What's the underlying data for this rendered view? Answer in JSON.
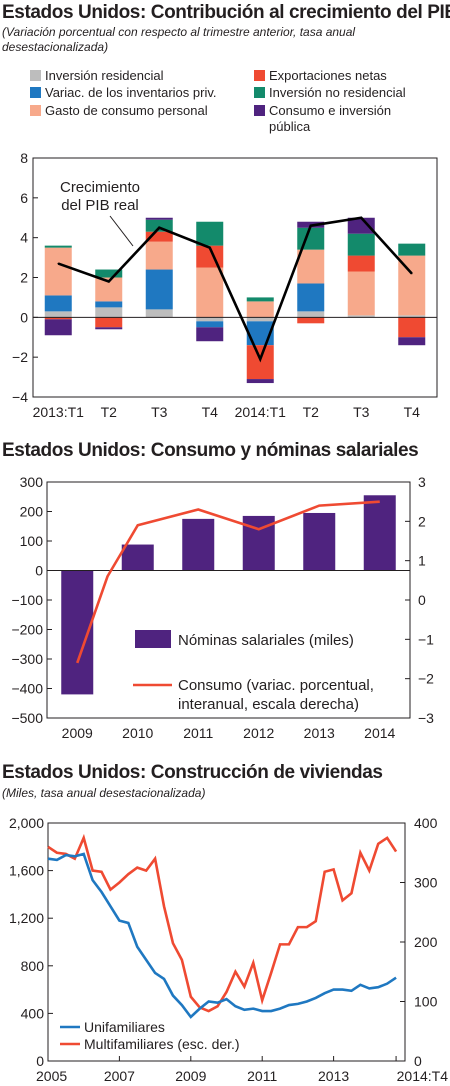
{
  "chart_data": [
    {
      "type": "bar",
      "title": "Estados Unidos: Contribución al crecimiento del PIB",
      "subtitle": "(Variación porcentual con respecto al trimestre anterior, tasa anual desestacionalizada)",
      "categories": [
        "2013:T1",
        "T2",
        "T3",
        "T4",
        "2014:T1",
        "T2",
        "T3",
        "T4"
      ],
      "ylim": [
        -4,
        8
      ],
      "yticks": [
        "−4",
        "−2",
        "0",
        "2",
        "4",
        "6",
        "8"
      ],
      "legend": [
        "Inversión residencial",
        "Exportaciones netas",
        "Variac. de los inventarios priv.",
        "Inversión no residencial",
        "Gasto de consumo personal",
        "Consumo e inversión",
        "pública"
      ],
      "annotation": [
        "Crecimiento",
        "del PIB real"
      ],
      "colors": {
        "Inversión residencial": "#bdbdbd",
        "Variac. de los inventarios priv.": "#1f78c1",
        "Gasto de consumo personal": "#f7a98b",
        "Exportaciones netas": "#ef4a32",
        "Inversión no residencial": "#138a6b",
        "Consumo e inversión pública": "#4f237f",
        "Crecimiento del PIB real": "#000000"
      },
      "series": [
        {
          "name": "Inversión residencial",
          "values": [
            0.3,
            0.5,
            0.4,
            -0.2,
            -0.2,
            0.3,
            0.1,
            0.1
          ]
        },
        {
          "name": "Variac. de los inventarios priv.",
          "values": [
            0.8,
            0.3,
            2.0,
            -0.3,
            -1.2,
            1.4,
            0.0,
            0.0
          ]
        },
        {
          "name": "Gasto de consumo personal",
          "values": [
            2.4,
            1.2,
            1.4,
            2.5,
            0.8,
            1.7,
            2.2,
            3.0
          ]
        },
        {
          "name": "Exportaciones netas",
          "values": [
            -0.1,
            -0.5,
            0.5,
            1.1,
            -1.7,
            -0.3,
            0.8,
            -1.0
          ]
        },
        {
          "name": "Inversión no residencial",
          "values": [
            0.1,
            0.4,
            0.6,
            1.2,
            0.2,
            1.1,
            1.1,
            0.6
          ]
        },
        {
          "name": "Consumo e inversión pública",
          "values": [
            -0.8,
            -0.1,
            0.1,
            -0.7,
            -0.2,
            0.3,
            0.8,
            -0.4
          ]
        },
        {
          "name": "Crecimiento del PIB real",
          "values": [
            2.7,
            1.8,
            4.5,
            3.5,
            -2.1,
            4.6,
            5.0,
            2.2
          ]
        }
      ]
    },
    {
      "type": "bar",
      "title": "Estados Unidos: Consumo y nóminas salariales",
      "categories": [
        "2009",
        "2010",
        "2011",
        "2012",
        "2013",
        "2014"
      ],
      "ylim": [
        -500,
        300
      ],
      "y2lim": [
        -3,
        3
      ],
      "yticks": [
        "−500",
        "−400",
        "−300",
        "−200",
        "−100",
        "0",
        "100",
        "200",
        "300"
      ],
      "y2ticks": [
        "−3",
        "−2",
        "−1",
        "0",
        "1",
        "2",
        "3"
      ],
      "colors": {
        "Nóminas salariales (miles)": "#4f237f",
        "Consumo": "#ef4a32"
      },
      "legend": [
        "Nóminas salariales (miles)",
        "Consumo (variac. porcentual,",
        "interanual, escala derecha)"
      ],
      "series": [
        {
          "name": "Nóminas salariales (miles)",
          "values": [
            -420,
            88,
            175,
            185,
            195,
            255
          ]
        },
        {
          "name": "Consumo",
          "axis": "right",
          "x": [
            2009,
            2009.5,
            2010,
            2011,
            2012,
            2013,
            2014
          ],
          "values": [
            -1.6,
            0.6,
            1.9,
            2.3,
            1.8,
            2.4,
            2.5
          ]
        }
      ]
    },
    {
      "type": "line",
      "title": "Estados Unidos: Construcción de viviendas",
      "subtitle": "(Miles, tasa anual desestacionalizada)",
      "xlim": [
        2005,
        2015
      ],
      "xticks": [
        "2005",
        "2007",
        "2009",
        "2011",
        "2013",
        "2014:T4"
      ],
      "ylim": [
        0,
        2000
      ],
      "y2lim": [
        0,
        400
      ],
      "yticks": [
        "0",
        "400",
        "800",
        "1,200",
        "1,600",
        "2,000"
      ],
      "y2ticks": [
        "0",
        "100",
        "200",
        "300",
        "400"
      ],
      "colors": {
        "Unifamiliares": "#1f78c1",
        "Multifamiliares": "#ef4a32"
      },
      "legend": [
        "Unifamiliares",
        "Multifamiliares (esc. der.)"
      ],
      "series": [
        {
          "name": "Unifamiliares",
          "axis": "left",
          "x": [
            2005,
            2005.25,
            2005.5,
            2005.75,
            2006,
            2006.25,
            2006.5,
            2006.75,
            2007,
            2007.25,
            2007.5,
            2007.75,
            2008,
            2008.25,
            2008.5,
            2008.75,
            2009,
            2009.25,
            2009.5,
            2009.75,
            2010,
            2010.25,
            2010.5,
            2010.75,
            2011,
            2011.25,
            2011.5,
            2011.75,
            2012,
            2012.25,
            2012.5,
            2012.75,
            2013,
            2013.25,
            2013.5,
            2013.75,
            2014,
            2014.25,
            2014.5,
            2014.75
          ],
          "values": [
            1700,
            1690,
            1730,
            1720,
            1740,
            1520,
            1420,
            1300,
            1180,
            1160,
            960,
            850,
            740,
            690,
            550,
            470,
            370,
            440,
            500,
            490,
            520,
            460,
            430,
            440,
            420,
            420,
            440,
            470,
            480,
            500,
            530,
            570,
            600,
            600,
            590,
            640,
            610,
            620,
            650,
            700
          ]
        },
        {
          "name": "Multifamiliares (esc. der.)",
          "axis": "right",
          "x": [
            2005,
            2005.25,
            2005.5,
            2005.75,
            2006,
            2006.25,
            2006.5,
            2006.75,
            2007,
            2007.25,
            2007.5,
            2007.75,
            2008,
            2008.25,
            2008.5,
            2008.75,
            2009,
            2009.25,
            2009.5,
            2009.75,
            2010,
            2010.25,
            2010.5,
            2010.75,
            2011,
            2011.25,
            2011.5,
            2011.75,
            2012,
            2012.25,
            2012.5,
            2012.75,
            2013,
            2013.25,
            2013.5,
            2013.75,
            2014,
            2014.25,
            2014.5,
            2014.75
          ],
          "values": [
            360,
            350,
            348,
            340,
            375,
            320,
            318,
            288,
            300,
            314,
            325,
            320,
            340,
            260,
            198,
            170,
            108,
            90,
            84,
            92,
            116,
            150,
            125,
            165,
            102,
            148,
            196,
            196,
            225,
            225,
            235,
            318,
            322,
            270,
            282,
            350,
            320,
            365,
            375,
            352
          ]
        }
      ]
    }
  ]
}
